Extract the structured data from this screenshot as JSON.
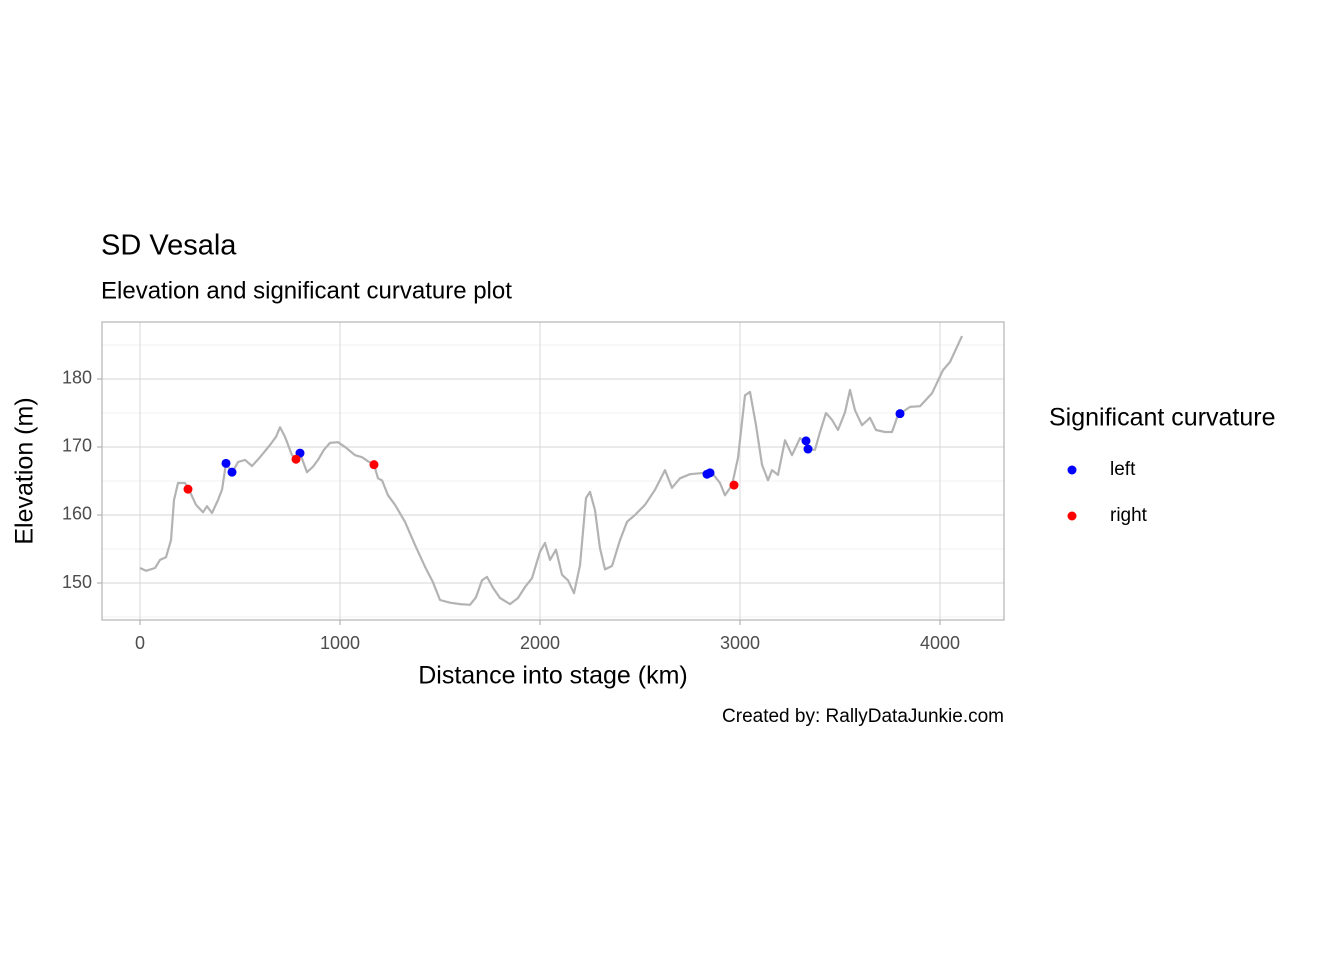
{
  "chart_data": {
    "type": "line",
    "title": "SD Vesala",
    "subtitle": "Elevation and significant curvature plot",
    "x_label": "Distance into stage (km)",
    "y_label": "Elevation (m)",
    "caption": "Created by: RallyDataJunkie.com",
    "legend_title": "Significant curvature",
    "legend_position": "right",
    "grid": true,
    "xlim": [
      -190,
      4320
    ],
    "ylim": [
      144.56,
      188.38
    ],
    "xticks": [
      0,
      1000,
      2000,
      3000,
      4000
    ],
    "yticks": [
      150,
      160,
      170,
      180
    ],
    "y_minor_grid": [
      145,
      155,
      165,
      175,
      185
    ],
    "series": [
      {
        "type": "line",
        "color": "#b3b3b3",
        "x": [
          0,
          30,
          75,
          100,
          130,
          155,
          170,
          190,
          225,
          250,
          280,
          315,
          335,
          360,
          390,
          410,
          430,
          460,
          490,
          525,
          560,
          600,
          650,
          680,
          700,
          725,
          760,
          780,
          800,
          835,
          865,
          890,
          920,
          950,
          990,
          1030,
          1075,
          1110,
          1140,
          1170,
          1190,
          1210,
          1240,
          1275,
          1325,
          1375,
          1425,
          1465,
          1500,
          1550,
          1600,
          1650,
          1680,
          1710,
          1735,
          1765,
          1800,
          1850,
          1890,
          1925,
          1960,
          2000,
          2025,
          2050,
          2080,
          2110,
          2140,
          2170,
          2200,
          2230,
          2250,
          2275,
          2300,
          2325,
          2360,
          2400,
          2435,
          2475,
          2525,
          2575,
          2625,
          2660,
          2700,
          2750,
          2825,
          2860,
          2900,
          2925,
          2960,
          2990,
          3025,
          3050,
          3080,
          3110,
          3140,
          3160,
          3190,
          3225,
          3260,
          3300,
          3330,
          3340,
          3375,
          3400,
          3430,
          3460,
          3490,
          3525,
          3550,
          3575,
          3610,
          3650,
          3680,
          3725,
          3760,
          3790,
          3850,
          3900,
          3960,
          4015,
          4050,
          4110
        ],
        "values": [
          152.2,
          151.8,
          152.2,
          153.4,
          153.8,
          156.3,
          162.2,
          164.7,
          164.7,
          163.4,
          161.5,
          160.4,
          161.3,
          160.3,
          162.2,
          163.7,
          167.6,
          166.2,
          167.8,
          168.1,
          167.2,
          168.5,
          170.3,
          171.5,
          172.9,
          171.5,
          168.8,
          168.4,
          169.1,
          166.3,
          167.1,
          168.1,
          169.6,
          170.6,
          170.7,
          169.9,
          168.8,
          168.5,
          167.9,
          167.4,
          165.4,
          165.1,
          162.9,
          161.5,
          159.0,
          155.6,
          152.4,
          150.1,
          147.5,
          147.1,
          146.9,
          146.8,
          147.9,
          150.4,
          150.9,
          149.3,
          147.8,
          146.9,
          147.8,
          149.4,
          150.7,
          154.6,
          155.9,
          153.4,
          154.9,
          151.2,
          150.4,
          148.5,
          152.6,
          162.5,
          163.4,
          160.7,
          155.1,
          152.0,
          152.5,
          156.3,
          159.0,
          160.0,
          161.5,
          163.7,
          166.6,
          164.0,
          165.4,
          166.0,
          166.2,
          166.2,
          164.7,
          162.9,
          164.4,
          168.4,
          177.6,
          178.1,
          173.2,
          167.4,
          165.1,
          166.6,
          165.9,
          171.0,
          168.8,
          171.3,
          170.7,
          169.6,
          169.6,
          172.2,
          175.0,
          174.0,
          172.5,
          175.1,
          178.4,
          175.4,
          173.2,
          174.3,
          172.5,
          172.2,
          172.2,
          174.7,
          175.9,
          176.0,
          177.9,
          181.3,
          182.5,
          186.3
        ]
      },
      {
        "type": "scatter",
        "name": "left",
        "color": "#0000ff",
        "x": [
          430,
          460,
          800,
          2835,
          2850,
          3330,
          3340,
          3800
        ],
        "values": [
          167.6,
          166.3,
          169.1,
          166.0,
          166.2,
          170.9,
          169.7,
          174.9
        ]
      },
      {
        "type": "scatter",
        "name": "right",
        "color": "#ff0000",
        "x": [
          240,
          780,
          1170,
          2970
        ],
        "values": [
          163.8,
          168.2,
          167.4,
          164.4
        ]
      }
    ]
  }
}
